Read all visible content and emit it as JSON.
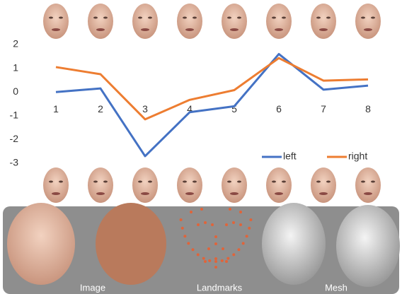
{
  "chart_data": {
    "type": "line",
    "categories": [
      "1",
      "2",
      "3",
      "4",
      "5",
      "6",
      "7",
      "8"
    ],
    "series": [
      {
        "name": "left",
        "color": "#4472c4",
        "values": [
          0,
          0.15,
          -2.7,
          -0.85,
          -0.6,
          1.6,
          0.1,
          0.27
        ]
      },
      {
        "name": "right",
        "color": "#ed7d31",
        "values": [
          1.05,
          0.75,
          -1.15,
          -0.33,
          0.08,
          1.43,
          0.48,
          0.53
        ]
      }
    ],
    "ylim": [
      -3,
      2
    ],
    "yticks": [
      -3,
      -2,
      -1,
      0,
      1,
      2
    ],
    "grid": false,
    "legend": "bottom-right"
  },
  "panel": {
    "labels": [
      "Image",
      "Landmarks",
      "Mesh"
    ]
  }
}
